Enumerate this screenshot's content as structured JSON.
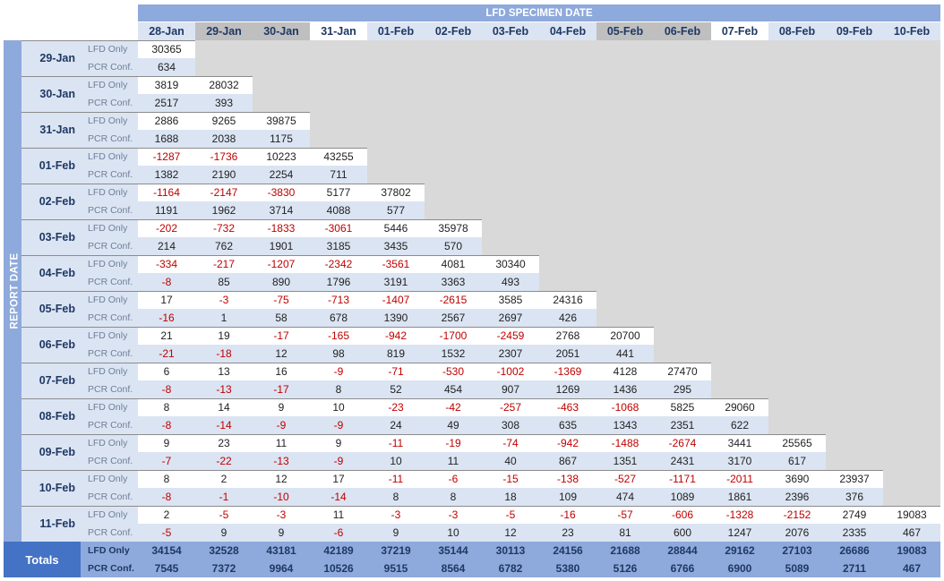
{
  "banner_title": "LFD SPECIMEN DATE",
  "side_title": "REPORT DATE",
  "col_headers": [
    "28-Jan",
    "29-Jan",
    "30-Jan",
    "31-Jan",
    "01-Feb",
    "02-Feb",
    "03-Feb",
    "04-Feb",
    "05-Feb",
    "06-Feb",
    "07-Feb",
    "08-Feb",
    "09-Feb",
    "10-Feb"
  ],
  "row_types": [
    "LFD Only",
    "PCR Conf."
  ],
  "rows": [
    {
      "date": "29-Jan",
      "lfd": [
        "30365"
      ],
      "pcr": [
        "634"
      ]
    },
    {
      "date": "30-Jan",
      "lfd": [
        "3819",
        "28032"
      ],
      "pcr": [
        "2517",
        "393"
      ]
    },
    {
      "date": "31-Jan",
      "lfd": [
        "2886",
        "9265",
        "39875"
      ],
      "pcr": [
        "1688",
        "2038",
        "1175"
      ]
    },
    {
      "date": "01-Feb",
      "lfd": [
        "-1287",
        "-1736",
        "10223",
        "43255"
      ],
      "pcr": [
        "1382",
        "2190",
        "2254",
        "711"
      ]
    },
    {
      "date": "02-Feb",
      "lfd": [
        "-1164",
        "-2147",
        "-3830",
        "5177",
        "37802"
      ],
      "pcr": [
        "1191",
        "1962",
        "3714",
        "4088",
        "577"
      ]
    },
    {
      "date": "03-Feb",
      "lfd": [
        "-202",
        "-732",
        "-1833",
        "-3061",
        "5446",
        "35978"
      ],
      "pcr": [
        "214",
        "762",
        "1901",
        "3185",
        "3435",
        "570"
      ]
    },
    {
      "date": "04-Feb",
      "lfd": [
        "-334",
        "-217",
        "-1207",
        "-2342",
        "-3561",
        "4081",
        "30340"
      ],
      "pcr": [
        "-8",
        "85",
        "890",
        "1796",
        "3191",
        "3363",
        "493"
      ]
    },
    {
      "date": "05-Feb",
      "lfd": [
        "17",
        "-3",
        "-75",
        "-713",
        "-1407",
        "-2615",
        "3585",
        "24316"
      ],
      "pcr": [
        "-16",
        "1",
        "58",
        "678",
        "1390",
        "2567",
        "2697",
        "426"
      ]
    },
    {
      "date": "06-Feb",
      "lfd": [
        "21",
        "19",
        "-17",
        "-165",
        "-942",
        "-1700",
        "-2459",
        "2768",
        "20700"
      ],
      "pcr": [
        "-21",
        "-18",
        "12",
        "98",
        "819",
        "1532",
        "2307",
        "2051",
        "441"
      ]
    },
    {
      "date": "07-Feb",
      "lfd": [
        "6",
        "13",
        "16",
        "-9",
        "-71",
        "-530",
        "-1002",
        "-1369",
        "4128",
        "27470"
      ],
      "pcr": [
        "-8",
        "-13",
        "-17",
        "8",
        "52",
        "454",
        "907",
        "1269",
        "1436",
        "295"
      ]
    },
    {
      "date": "08-Feb",
      "lfd": [
        "8",
        "14",
        "9",
        "10",
        "-23",
        "-42",
        "-257",
        "-463",
        "-1068",
        "5825",
        "29060"
      ],
      "pcr": [
        "-8",
        "-14",
        "-9",
        "-9",
        "24",
        "49",
        "308",
        "635",
        "1343",
        "2351",
        "622"
      ]
    },
    {
      "date": "09-Feb",
      "lfd": [
        "9",
        "23",
        "11",
        "9",
        "-11",
        "-19",
        "-74",
        "-942",
        "-1488",
        "-2674",
        "3441",
        "25565"
      ],
      "pcr": [
        "-7",
        "-22",
        "-13",
        "-9",
        "10",
        "11",
        "40",
        "867",
        "1351",
        "2431",
        "3170",
        "617"
      ]
    },
    {
      "date": "10-Feb",
      "lfd": [
        "8",
        "2",
        "12",
        "17",
        "-11",
        "-6",
        "-15",
        "-138",
        "-527",
        "-1171",
        "-2011",
        "3690",
        "23937"
      ],
      "pcr": [
        "-8",
        "-1",
        "-10",
        "-14",
        "8",
        "8",
        "18",
        "109",
        "474",
        "1089",
        "1861",
        "2396",
        "376"
      ]
    },
    {
      "date": "11-Feb",
      "lfd": [
        "2",
        "-5",
        "-3",
        "11",
        "-3",
        "-3",
        "-5",
        "-16",
        "-57",
        "-606",
        "-1328",
        "-2152",
        "2749",
        "19083"
      ],
      "pcr": [
        "-5",
        "9",
        "9",
        "-6",
        "9",
        "10",
        "12",
        "23",
        "81",
        "600",
        "1247",
        "2076",
        "2335",
        "467"
      ]
    }
  ],
  "totals": {
    "label": "Totals",
    "lfd": [
      "34154",
      "32528",
      "43181",
      "42189",
      "37219",
      "35144",
      "30113",
      "24156",
      "21688",
      "28844",
      "29162",
      "27103",
      "26686",
      "19083"
    ],
    "pcr": [
      "7545",
      "7372",
      "9964",
      "10526",
      "9515",
      "8564",
      "6782",
      "5380",
      "5126",
      "6766",
      "6900",
      "5089",
      "2711",
      "467"
    ]
  },
  "colors": {
    "banner": "#8ea9db",
    "header_light": "#dbe4f2",
    "header_dark": "#bfbfbf",
    "negative": "#c00000",
    "totals_label": "#4472c4",
    "empty": "#d9d9d9"
  }
}
